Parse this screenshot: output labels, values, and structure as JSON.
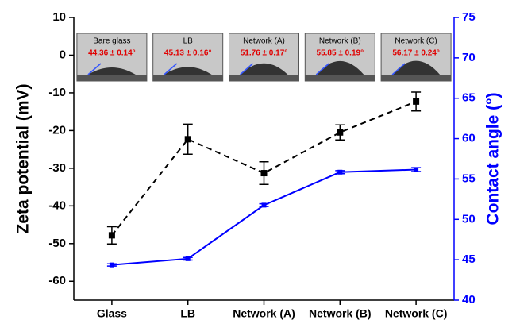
{
  "chart_data": {
    "type": "line",
    "ylabel": "Zeta potential (mV)",
    "y2label": "Contact angle (°)",
    "categories": [
      "Glass",
      "LB",
      "Network (A)",
      "Network (B)",
      "Network (C)"
    ],
    "ylim": [
      -65,
      10
    ],
    "yticks": [
      -60,
      -50,
      -40,
      -30,
      -20,
      -10,
      0,
      10
    ],
    "y2lim": [
      40,
      75
    ],
    "y2ticks": [
      40,
      45,
      50,
      55,
      60,
      65,
      70,
      75
    ],
    "series": [
      {
        "color": "#000000",
        "style": "dashed",
        "values": [
          -47.8,
          -22.3,
          -31.3,
          -20.5,
          -12.3
        ],
        "errors": [
          2.3,
          4.0,
          3.0,
          2.0,
          2.5
        ]
      },
      {
        "color": "#0000ff",
        "style": "solid",
        "axis": "y2",
        "values": [
          44.36,
          45.13,
          51.76,
          55.85,
          56.17
        ],
        "errors": [
          0.14,
          0.16,
          0.17,
          0.19,
          0.24
        ],
        "value_labels": [
          "44.36 ± 0.14°",
          "45.13 ± 0.16°",
          "51.76 ± 0.17°",
          "55.85 ± 0.19°",
          "56.17 ± 0.24°"
        ]
      }
    ],
    "insets": [
      "Bare glass",
      "LB",
      "Network (A)",
      "Network (B)",
      "Network (C)"
    ]
  }
}
